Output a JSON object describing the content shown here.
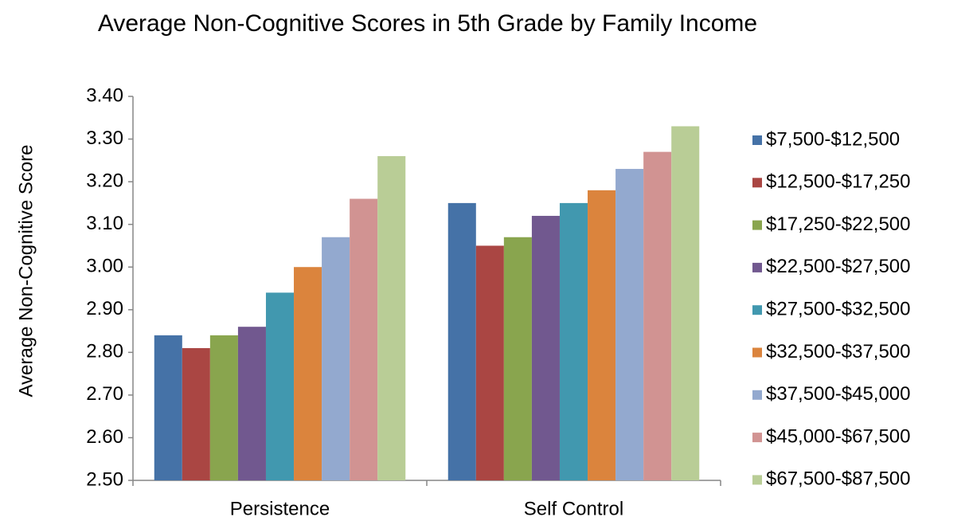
{
  "chart_data": {
    "type": "bar",
    "title": "Average Non-Cognitive Scores in 5th Grade by Family Income",
    "y_label": "Average Non-Cognitive Score",
    "categories": [
      "Persistence",
      "Self Control"
    ],
    "series": [
      {
        "name": "$7,500-$12,500",
        "color": "#4572A7",
        "values": [
          2.84,
          3.15
        ]
      },
      {
        "name": "$12,500-$17,250",
        "color": "#AA4643",
        "values": [
          2.81,
          3.05
        ]
      },
      {
        "name": "$17,250-$22,500",
        "color": "#89A54E",
        "values": [
          2.84,
          3.07
        ]
      },
      {
        "name": "$22,500-$27,500",
        "color": "#71588F",
        "values": [
          2.86,
          3.12
        ]
      },
      {
        "name": "$27,500-$32,500",
        "color": "#4198AF",
        "values": [
          2.94,
          3.15
        ]
      },
      {
        "name": "$32,500-$37,500",
        "color": "#DB843D",
        "values": [
          3.0,
          3.18
        ]
      },
      {
        "name": "$37,500-$45,000",
        "color": "#93A9CF",
        "values": [
          3.07,
          3.23
        ]
      },
      {
        "name": "$45,000-$67,500",
        "color": "#D19392",
        "values": [
          3.16,
          3.27
        ]
      },
      {
        "name": "$67,500-$87,500",
        "color": "#B9CD96",
        "values": [
          3.26,
          3.33
        ]
      }
    ],
    "ylim": [
      2.5,
      3.4
    ],
    "yticks": [
      {
        "value": 2.5,
        "label": "2.50"
      },
      {
        "value": 2.6,
        "label": "2.60"
      },
      {
        "value": 2.7,
        "label": "2.70"
      },
      {
        "value": 2.8,
        "label": "2.80"
      },
      {
        "value": 2.9,
        "label": "2.90"
      },
      {
        "value": 3.0,
        "label": "3.00"
      },
      {
        "value": 3.1,
        "label": "3.10"
      },
      {
        "value": 3.2,
        "label": "3.20"
      },
      {
        "value": 3.3,
        "label": "3.30"
      },
      {
        "value": 3.4,
        "label": "3.40"
      }
    ],
    "grid": false,
    "legend": "right"
  }
}
